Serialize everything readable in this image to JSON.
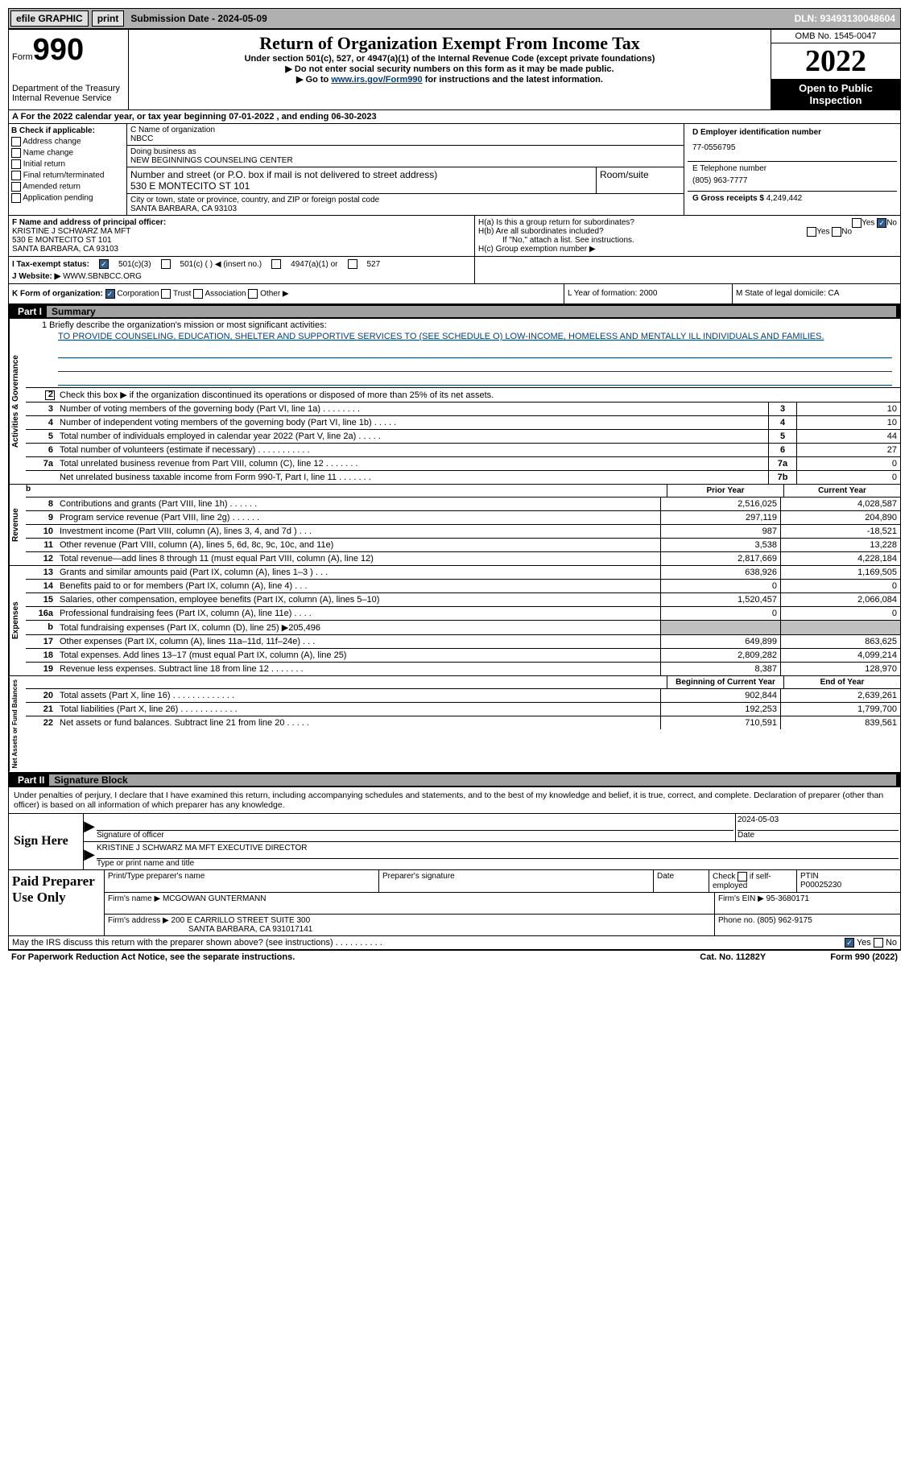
{
  "topbar": {
    "efile": "efile GRAPHIC",
    "print": "print",
    "submission_label": "Submission Date - ",
    "submission_date": "2024-05-09",
    "dln": "DLN: 93493130048604"
  },
  "header": {
    "form_word": "Form",
    "form_num": "990",
    "dept": "Department of the Treasury Internal Revenue Service",
    "title": "Return of Organization Exempt From Income Tax",
    "sub1": "Under section 501(c), 527, or 4947(a)(1) of the Internal Revenue Code (except private foundations)",
    "sub2": "▶ Do not enter social security numbers on this form as it may be made public.",
    "sub3_pre": "▶ Go to ",
    "sub3_link": "www.irs.gov/Form990",
    "sub3_post": " for instructions and the latest information.",
    "omb": "OMB No. 1545-0047",
    "year": "2022",
    "open": "Open to Public Inspection"
  },
  "calendar": "A For the 2022 calendar year, or tax year beginning 07-01-2022  , and ending 06-30-2023",
  "sectionB": {
    "title": "B Check if applicable:",
    "opts": [
      "Address change",
      "Name change",
      "Initial return",
      "Final return/terminated",
      "Amended return",
      "Application pending"
    ],
    "c_label": "C Name of organization",
    "c_name": "NBCC",
    "dba_label": "Doing business as",
    "dba": "NEW BEGINNINGS COUNSELING CENTER",
    "addr_label": "Number and street (or P.O. box if mail is not delivered to street address)",
    "addr": "530 E MONTECITO ST 101",
    "room_label": "Room/suite",
    "city_label": "City or town, state or province, country, and ZIP or foreign postal code",
    "city": "SANTA BARBARA, CA  93103",
    "d_label": "D Employer identification number",
    "ein": "77-0556795",
    "e_label": "E Telephone number",
    "phone": "(805) 963-7777",
    "g_label": "G Gross receipts $ ",
    "gross": "4,249,442"
  },
  "sectionF": {
    "label": "F Name and address of principal officer:",
    "name": "KRISTINE J SCHWARZ MA MFT",
    "addr1": "530 E MONTECITO ST 101",
    "addr2": "SANTA BARBARA, CA  93103",
    "ha": "H(a) Is this a group return for subordinates?",
    "hb": "H(b) Are all subordinates included?",
    "hb_note": "If \"No,\" attach a list. See instructions.",
    "hc": "H(c) Group exemption number ▶"
  },
  "taxstatus": {
    "label": "I   Tax-exempt status:",
    "o1": "501(c)(3)",
    "o2": "501(c) (  ) ◀ (insert no.)",
    "o3": "4947(a)(1) or",
    "o4": "527"
  },
  "website": {
    "label": "J   Website: ▶",
    "url": "WWW.SBNBCC.ORG"
  },
  "kform": {
    "label": "K Form of organization:",
    "opts": [
      "Corporation",
      "Trust",
      "Association",
      "Other ▶"
    ],
    "l": "L Year of formation: 2000",
    "m": "M State of legal domicile: CA"
  },
  "part1": {
    "num": "Part I",
    "title": "Summary"
  },
  "mission": {
    "q": "1  Briefly describe the organization's mission or most significant activities:",
    "text": "TO PROVIDE COUNSELING, EDUCATION, SHELTER AND SUPPORTIVE SERVICES TO (SEE SCHEDULE O) LOW-INCOME, HOMELESS AND MENTALLY ILL INDIVIDUALS AND FAMILIES."
  },
  "line2": "Check this box ▶    if the organization discontinued its operations or disposed of more than 25% of its net assets.",
  "lines_ag": [
    {
      "n": "3",
      "d": "Number of voting members of the governing body (Part VI, line 1a)  .   .   .   .   .   .   .   .",
      "b": "3",
      "v": "10"
    },
    {
      "n": "4",
      "d": "Number of independent voting members of the governing body (Part VI, line 1b)  .   .   .   .   .",
      "b": "4",
      "v": "10"
    },
    {
      "n": "5",
      "d": "Total number of individuals employed in calendar year 2022 (Part V, line 2a)  .   .   .   .   .",
      "b": "5",
      "v": "44"
    },
    {
      "n": "6",
      "d": "Total number of volunteers (estimate if necessary)   .   .   .   .   .   .   .   .   .   .   .",
      "b": "6",
      "v": "27"
    },
    {
      "n": "7a",
      "d": "Total unrelated business revenue from Part VIII, column (C), line 12   .   .   .   .   .   .   .",
      "b": "7a",
      "v": "0"
    },
    {
      "n": "",
      "d": "Net unrelated business taxable income from Form 990-T, Part I, line 11  .   .   .   .   .   .   .",
      "b": "7b",
      "v": "0"
    }
  ],
  "headers_py_cy": {
    "b": "b",
    "prior": "Prior Year",
    "curr": "Current Year"
  },
  "revenue": [
    {
      "n": "8",
      "d": "Contributions and grants (Part VIII, line 1h)   .   .   .   .   .   .",
      "p": "2,516,025",
      "c": "4,028,587"
    },
    {
      "n": "9",
      "d": "Program service revenue (Part VIII, line 2g)   .   .   .   .   .   .",
      "p": "297,119",
      "c": "204,890"
    },
    {
      "n": "10",
      "d": "Investment income (Part VIII, column (A), lines 3, 4, and 7d )   .   .   .",
      "p": "987",
      "c": "-18,521"
    },
    {
      "n": "11",
      "d": "Other revenue (Part VIII, column (A), lines 5, 6d, 8c, 9c, 10c, and 11e)",
      "p": "3,538",
      "c": "13,228"
    },
    {
      "n": "12",
      "d": "Total revenue—add lines 8 through 11 (must equal Part VIII, column (A), line 12)",
      "p": "2,817,669",
      "c": "4,228,184"
    }
  ],
  "expenses": [
    {
      "n": "13",
      "d": "Grants and similar amounts paid (Part IX, column (A), lines 1–3 )   .   .   .",
      "p": "638,926",
      "c": "1,169,505"
    },
    {
      "n": "14",
      "d": "Benefits paid to or for members (Part IX, column (A), line 4)   .   .   .",
      "p": "0",
      "c": "0"
    },
    {
      "n": "15",
      "d": "Salaries, other compensation, employee benefits (Part IX, column (A), lines 5–10)",
      "p": "1,520,457",
      "c": "2,066,084"
    },
    {
      "n": "16a",
      "d": "Professional fundraising fees (Part IX, column (A), line 11e)   .   .   .   .",
      "p": "0",
      "c": "0"
    },
    {
      "n": "b",
      "d": "Total fundraising expenses (Part IX, column (D), line 25) ▶205,496",
      "p": "",
      "c": "",
      "shaded": true
    },
    {
      "n": "17",
      "d": "Other expenses (Part IX, column (A), lines 11a–11d, 11f–24e)   .   .   .",
      "p": "649,899",
      "c": "863,625"
    },
    {
      "n": "18",
      "d": "Total expenses. Add lines 13–17 (must equal Part IX, column (A), line 25)",
      "p": "2,809,282",
      "c": "4,099,214"
    },
    {
      "n": "19",
      "d": "Revenue less expenses. Subtract line 18 from line 12  .   .   .   .   .   .   .",
      "p": "8,387",
      "c": "128,970"
    }
  ],
  "headers_boy_eoy": {
    "prior": "Beginning of Current Year",
    "curr": "End of Year"
  },
  "netassets": [
    {
      "n": "20",
      "d": "Total assets (Part X, line 16)  .   .   .   .   .   .   .   .   .   .   .   .   .",
      "p": "902,844",
      "c": "2,639,261"
    },
    {
      "n": "21",
      "d": "Total liabilities (Part X, line 26)  .   .   .   .   .   .   .   .   .   .   .   .",
      "p": "192,253",
      "c": "1,799,700"
    },
    {
      "n": "22",
      "d": "Net assets or fund balances. Subtract line 21 from line 20  .   .   .   .   .",
      "p": "710,591",
      "c": "839,561"
    }
  ],
  "part2": {
    "num": "Part II",
    "title": "Signature Block"
  },
  "declaration": "Under penalties of perjury, I declare that I have examined this return, including accompanying schedules and statements, and to the best of my knowledge and belief, it is true, correct, and complete. Declaration of preparer (other than officer) is based on all information of which preparer has any knowledge.",
  "sign": {
    "label": "Sign Here",
    "sig_label": "Signature of officer",
    "date": "2024-05-03",
    "name": "KRISTINE J SCHWARZ MA MFT EXECUTIVE DIRECTOR",
    "name_label": "Type or print name and title"
  },
  "preparer": {
    "label": "Paid Preparer Use Only",
    "h1": "Print/Type preparer's name",
    "h2": "Preparer's signature",
    "h3": "Date",
    "h4_pre": "Check",
    "h4_post": "if self-employed",
    "h5": "PTIN",
    "ptin": "P00025230",
    "firm_label": "Firm's name    ▶",
    "firm": "MCGOWAN GUNTERMANN",
    "ein_label": "Firm's EIN ▶",
    "ein": "95-3680171",
    "addr_label": "Firm's address ▶",
    "addr1": "200 E CARRILLO STREET SUITE 300",
    "addr2": "SANTA BARBARA, CA  931017141",
    "phone_label": "Phone no.",
    "phone": "(805) 962-9175"
  },
  "discuss": "May the IRS discuss this return with the preparer shown above? (see instructions)   .   .   .   .   .   .   .   .   .   .",
  "footer": {
    "pra": "For Paperwork Reduction Act Notice, see the separate instructions.",
    "cat": "Cat. No. 11282Y",
    "form": "Form 990 (2022)"
  },
  "labels": {
    "yes": "Yes",
    "no": "No",
    "ag": "Activities & Governance",
    "rev": "Revenue",
    "exp": "Expenses",
    "na": "Net Assets or Fund Balances"
  }
}
